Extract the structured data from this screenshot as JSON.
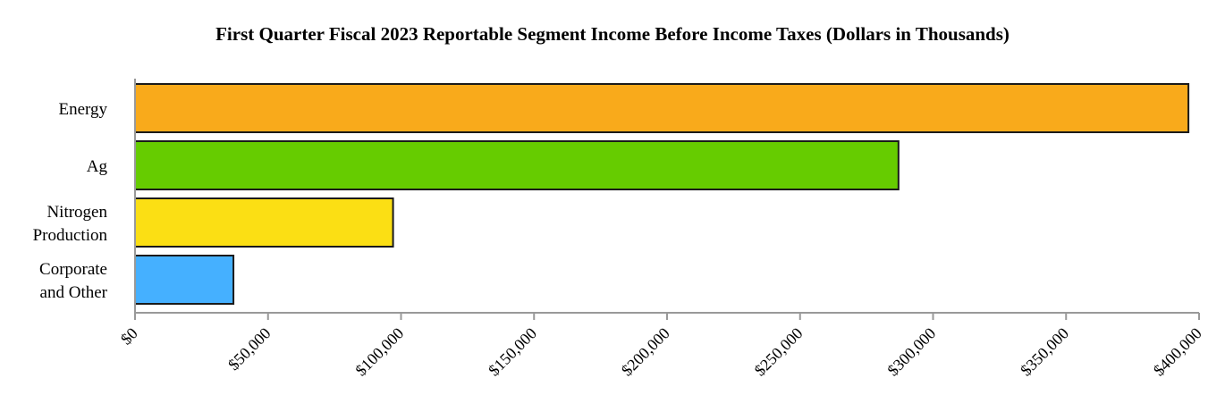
{
  "chart_data": {
    "type": "bar",
    "orientation": "horizontal",
    "title": "First Quarter Fiscal 2023 Reportable Segment Income Before Income Taxes (Dollars in Thousands)",
    "xlabel": "",
    "ylabel": "",
    "categories": [
      [
        "Energy"
      ],
      [
        "Ag"
      ],
      [
        "Nitrogen",
        "Production"
      ],
      [
        "Corporate",
        "and Other"
      ]
    ],
    "values": [
      396000,
      287000,
      97000,
      37000
    ],
    "colors": [
      "#f9aa1b",
      "#66cc00",
      "#fbdf14",
      "#45b0ff"
    ],
    "xlim": [
      0,
      400000
    ],
    "xticks": [
      0,
      50000,
      100000,
      150000,
      200000,
      250000,
      300000,
      350000,
      400000
    ],
    "xtick_labels": [
      "$0",
      "$50,000",
      "$100,000",
      "$150,000",
      "$200,000",
      "$250,000",
      "$300,000",
      "$350,000",
      "$400,000"
    ],
    "grid": false,
    "legend": "none"
  }
}
